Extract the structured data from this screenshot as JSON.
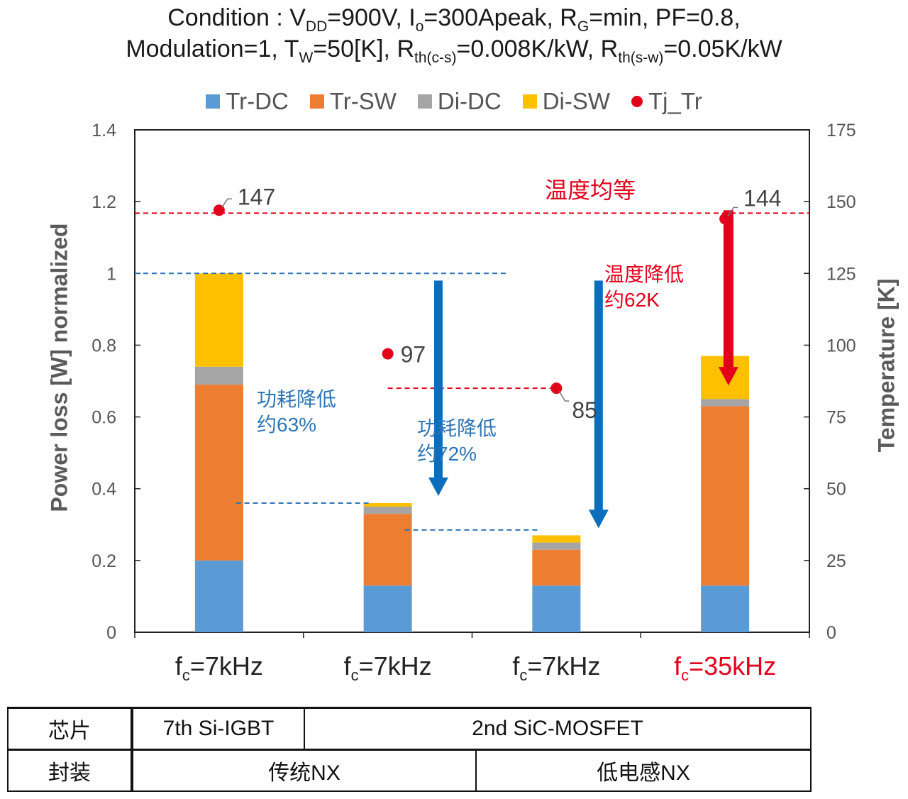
{
  "title": {
    "line1": [
      {
        "t": "Condition : V"
      },
      {
        "s": "DD"
      },
      {
        "t": "=900V, I"
      },
      {
        "s": "o"
      },
      {
        "t": "=300Apeak, R"
      },
      {
        "s": "G"
      },
      {
        "t": "=min, PF=0.8,"
      }
    ],
    "line2": [
      {
        "t": "Modulation=1, T"
      },
      {
        "s": "W"
      },
      {
        "t": "=50[K], R"
      },
      {
        "s": "th(c-s)"
      },
      {
        "t": "=0.008K/kW, R"
      },
      {
        "s": "th(s-w)"
      },
      {
        "t": "=0.05K/kW"
      }
    ]
  },
  "chart_data": {
    "type": "bar",
    "stacked": true,
    "categories_main": [
      "f",
      "f",
      "f",
      "f"
    ],
    "categories_sub": [
      "c",
      "c",
      "c",
      "c"
    ],
    "categories_rest": [
      "=7kHz",
      "=7kHz",
      "=7kHz",
      "=35kHz"
    ],
    "category_colors": [
      "#222222",
      "#222222",
      "#222222",
      "#e3001b"
    ],
    "series": [
      {
        "name": "Tr-DC",
        "color": "#5b9bd5",
        "values": [
          0.2,
          0.13,
          0.13,
          0.13
        ]
      },
      {
        "name": "Tr-SW",
        "color": "#ed7d31",
        "values": [
          0.49,
          0.2,
          0.1,
          0.5
        ]
      },
      {
        "name": "Di-DC",
        "color": "#a5a5a5",
        "values": [
          0.05,
          0.02,
          0.02,
          0.02
        ]
      },
      {
        "name": "Di-SW",
        "color": "#ffc000",
        "values": [
          0.26,
          0.01,
          0.02,
          0.12
        ]
      }
    ],
    "tj_series": {
      "name": "Tj_Tr",
      "color": "#e3001b",
      "values": [
        147,
        97,
        85,
        144
      ],
      "labels": [
        "147",
        "97",
        "85",
        "144"
      ]
    },
    "y_left": {
      "label": "Power loss [W] normalized",
      "min": 0,
      "max": 1.4,
      "ticks": [
        0,
        0.2,
        0.4,
        0.6,
        0.8,
        1,
        1.2,
        1.4
      ],
      "tick_labels": [
        "0",
        "0.2",
        "0.4",
        "0.6",
        "0.8",
        "1",
        "1.2",
        "1.4"
      ]
    },
    "y_right": {
      "label": "Temperature [K]",
      "min": 0,
      "max": 175,
      "ticks": [
        0,
        25,
        50,
        75,
        100,
        125,
        150,
        175
      ],
      "tick_labels": [
        "0",
        "25",
        "50",
        "75",
        "100",
        "125",
        "150",
        "175"
      ]
    },
    "reference_lines": [
      {
        "axis": "left",
        "value": 1.0,
        "color": "#2e75b6",
        "from": 0,
        "to": 2.2
      },
      {
        "axis": "left",
        "value": 0.36,
        "color": "#2e75b6",
        "from": 0.6,
        "to": 1.4
      },
      {
        "axis": "left",
        "value": 0.285,
        "color": "#2e75b6",
        "from": 1.6,
        "to": 2.4
      },
      {
        "axis": "right",
        "value": 146,
        "color": "#e3001b",
        "from": 0,
        "to": 4.0
      },
      {
        "axis": "right",
        "value": 85,
        "color": "#e3001b",
        "from": 1.5,
        "to": 2.5
      }
    ],
    "arrows": [
      {
        "axis": "left",
        "x": 1.8,
        "from": 0.98,
        "to": 0.38,
        "color": "#0a6ebd"
      },
      {
        "axis": "left",
        "x": 2.75,
        "from": 0.98,
        "to": 0.29,
        "color": "#0a6ebd"
      },
      {
        "axis": "right",
        "x": 3.52,
        "from": 147,
        "to": 86,
        "color": "#e3001b"
      }
    ],
    "annotations": [
      {
        "lines": [
          "功耗降低",
          "约63%"
        ],
        "color": "#2e75b6"
      },
      {
        "lines": [
          "功耗降低",
          "约72%"
        ],
        "color": "#2e75b6"
      },
      {
        "lines": [
          "温度降低",
          "约62K"
        ],
        "color": "#e3001b"
      },
      {
        "lines": [
          "温度均等"
        ],
        "color": "#e3001b"
      }
    ],
    "legend_position": "top",
    "grid": false
  },
  "table": {
    "row1": {
      "header": "芯片",
      "cells": [
        "7th Si-IGBT",
        "2nd SiC-MOSFET"
      ]
    },
    "row2": {
      "header": "封装",
      "cells": [
        "传统NX",
        "低电感NX"
      ]
    }
  }
}
